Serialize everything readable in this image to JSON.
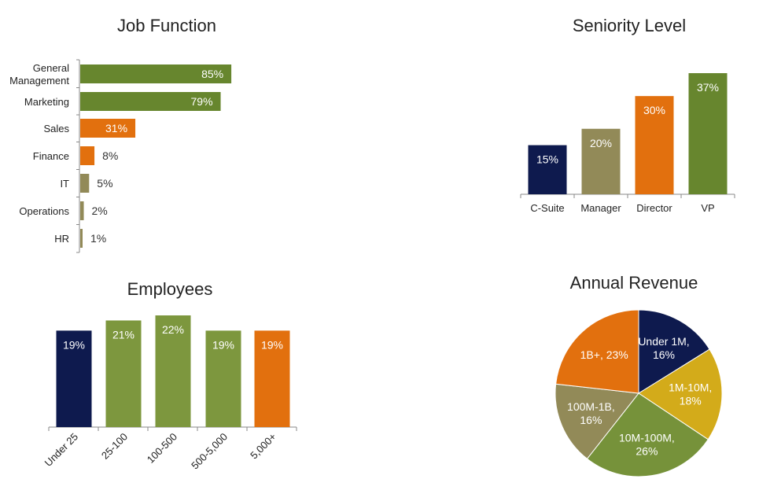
{
  "colors": {
    "green": "#67862e",
    "olive": "#928a58",
    "orange": "#e2700e",
    "navy": "#0e1a4e",
    "gold": "#d3ab1a",
    "lime": "#76923a",
    "lime2": "#7d973e"
  },
  "chart_data": [
    {
      "type": "bar",
      "orientation": "horizontal",
      "title": "Job Function",
      "categories": [
        "General Management",
        "Marketing",
        "Sales",
        "Finance",
        "IT",
        "Operations",
        "HR"
      ],
      "category_lines": [
        [
          "General",
          "Management"
        ],
        [
          "Marketing"
        ],
        [
          "Sales"
        ],
        [
          "Finance"
        ],
        [
          "IT"
        ],
        [
          "Operations"
        ],
        [
          "HR"
        ]
      ],
      "values": [
        85,
        79,
        31,
        8,
        5,
        2,
        1
      ],
      "labels": [
        "85%",
        "79%",
        "31%",
        "8%",
        "5%",
        "2%",
        "1%"
      ],
      "colors": [
        "#67862e",
        "#67862e",
        "#e2700e",
        "#e2700e",
        "#928a58",
        "#928a58",
        "#928a58"
      ],
      "unit": "%"
    },
    {
      "type": "bar",
      "title": "Seniority Level",
      "categories": [
        "C-Suite",
        "Manager",
        "Director",
        "VP"
      ],
      "values": [
        15,
        20,
        30,
        37
      ],
      "labels": [
        "15%",
        "20%",
        "30%",
        "37%"
      ],
      "colors": [
        "#0e1a4e",
        "#928a58",
        "#e2700e",
        "#67862e"
      ],
      "unit": "%"
    },
    {
      "type": "bar",
      "title": "Employees",
      "categories": [
        "Under 25",
        "25-100",
        "100-500",
        "500-5,000",
        "5,000+"
      ],
      "values": [
        19,
        21,
        22,
        19,
        19
      ],
      "labels": [
        "19%",
        "21%",
        "22%",
        "19%",
        "19%"
      ],
      "colors": [
        "#0e1a4e",
        "#7d973e",
        "#7d973e",
        "#7d973e",
        "#e2700e"
      ],
      "unit": "%"
    },
    {
      "type": "pie",
      "title": "Annual Revenue",
      "categories": [
        "Under 1M",
        "1M-10M",
        "10M-100M",
        "100M-1B",
        "1B+"
      ],
      "values": [
        16,
        18,
        26,
        16,
        23
      ],
      "label_lines": [
        [
          "Under 1M,",
          "16%"
        ],
        [
          "1M-10M,",
          "18%"
        ],
        [
          "10M-100M,",
          "26%"
        ],
        [
          "100M-1B,",
          "16%"
        ],
        [
          "1B+, 23%"
        ]
      ],
      "colors": [
        "#0e1a4e",
        "#d3ab1a",
        "#76923a",
        "#928a58",
        "#e2700e"
      ],
      "unit": "%"
    }
  ]
}
